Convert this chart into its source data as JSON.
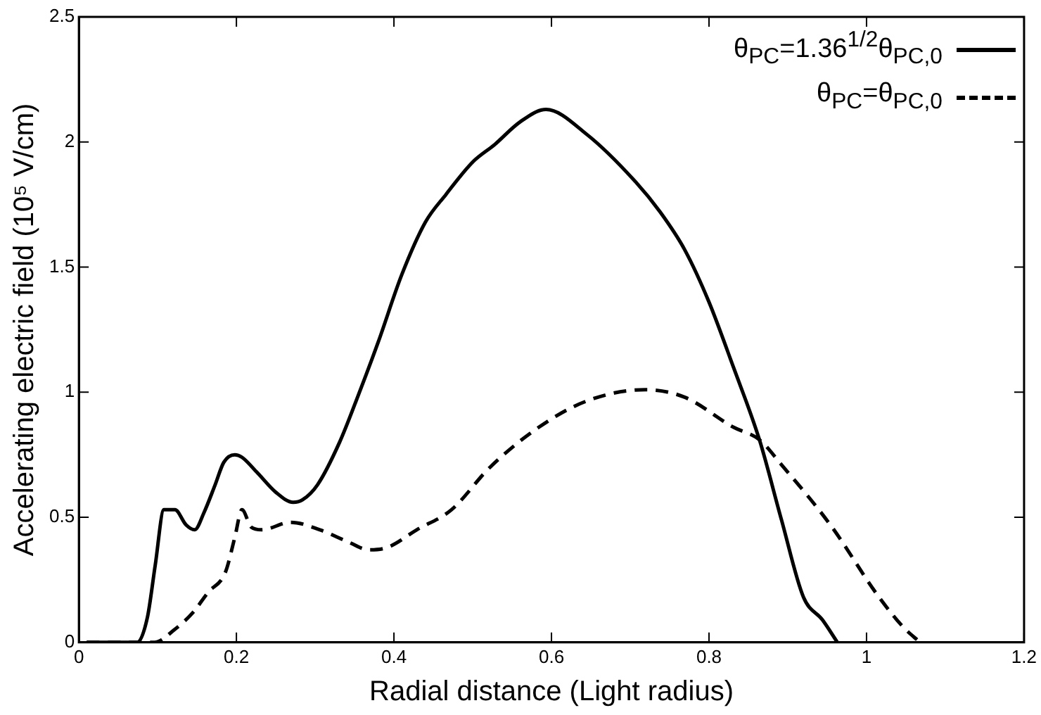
{
  "chart_data": {
    "type": "line",
    "xlabel": "Radial distance (Light radius)",
    "ylabel": "Accelerating electric field (10⁵ V/cm)",
    "xlim": [
      0,
      1.2
    ],
    "xticks": [
      0,
      0.2,
      0.4,
      0.6,
      0.8,
      1,
      1.2
    ],
    "ylim": [
      0,
      2.5
    ],
    "yticks": [
      0,
      0.5,
      1,
      1.5,
      2,
      2.5
    ],
    "grid": false,
    "legend": "top right",
    "marker": "none",
    "series": [
      {
        "name": "θ$_{PC}$=1.36$^{1/2}$θ$_{PC,0}$",
        "color": "#000000",
        "line_style": "solid",
        "x": [
          0.01,
          0.074,
          0.087,
          0.097,
          0.108,
          0.122,
          0.136,
          0.147,
          0.159,
          0.173,
          0.184,
          0.198,
          0.207,
          0.226,
          0.25,
          0.272,
          0.284,
          0.303,
          0.331,
          0.355,
          0.38,
          0.41,
          0.44,
          0.466,
          0.5,
          0.528,
          0.56,
          0.593,
          0.645,
          0.707,
          0.738,
          0.769,
          0.8,
          0.831,
          0.864,
          0.892,
          0.92,
          0.944,
          0.963
        ],
        "values": [
          0,
          0,
          0.1,
          0.31,
          0.53,
          0.53,
          0.47,
          0.45,
          0.52,
          0.63,
          0.72,
          0.75,
          0.74,
          0.68,
          0.6,
          0.56,
          0.57,
          0.63,
          0.8,
          0.99,
          1.2,
          1.47,
          1.68,
          1.79,
          1.92,
          1.99,
          2.08,
          2.13,
          2.03,
          1.84,
          1.72,
          1.57,
          1.36,
          1.1,
          0.81,
          0.49,
          0.18,
          0.09,
          0
        ]
      },
      {
        "name": "θ$_{PC}$=θ$_{PC,0}$",
        "color": "#000000",
        "line_style": "dashed",
        "x": [
          0.01,
          0.096,
          0.121,
          0.145,
          0.164,
          0.186,
          0.198,
          0.207,
          0.219,
          0.232,
          0.269,
          0.306,
          0.343,
          0.368,
          0.392,
          0.429,
          0.473,
          0.522,
          0.584,
          0.645,
          0.719,
          0.769,
          0.831,
          0.864,
          0.892,
          0.954,
          1.016,
          1.047,
          1.068
        ],
        "values": [
          0,
          0,
          0.05,
          0.12,
          0.2,
          0.28,
          0.42,
          0.53,
          0.46,
          0.45,
          0.48,
          0.45,
          0.4,
          0.37,
          0.38,
          0.45,
          0.53,
          0.7,
          0.86,
          0.965,
          1.01,
          0.98,
          0.86,
          0.81,
          0.71,
          0.47,
          0.18,
          0.06,
          0
        ]
      }
    ]
  }
}
